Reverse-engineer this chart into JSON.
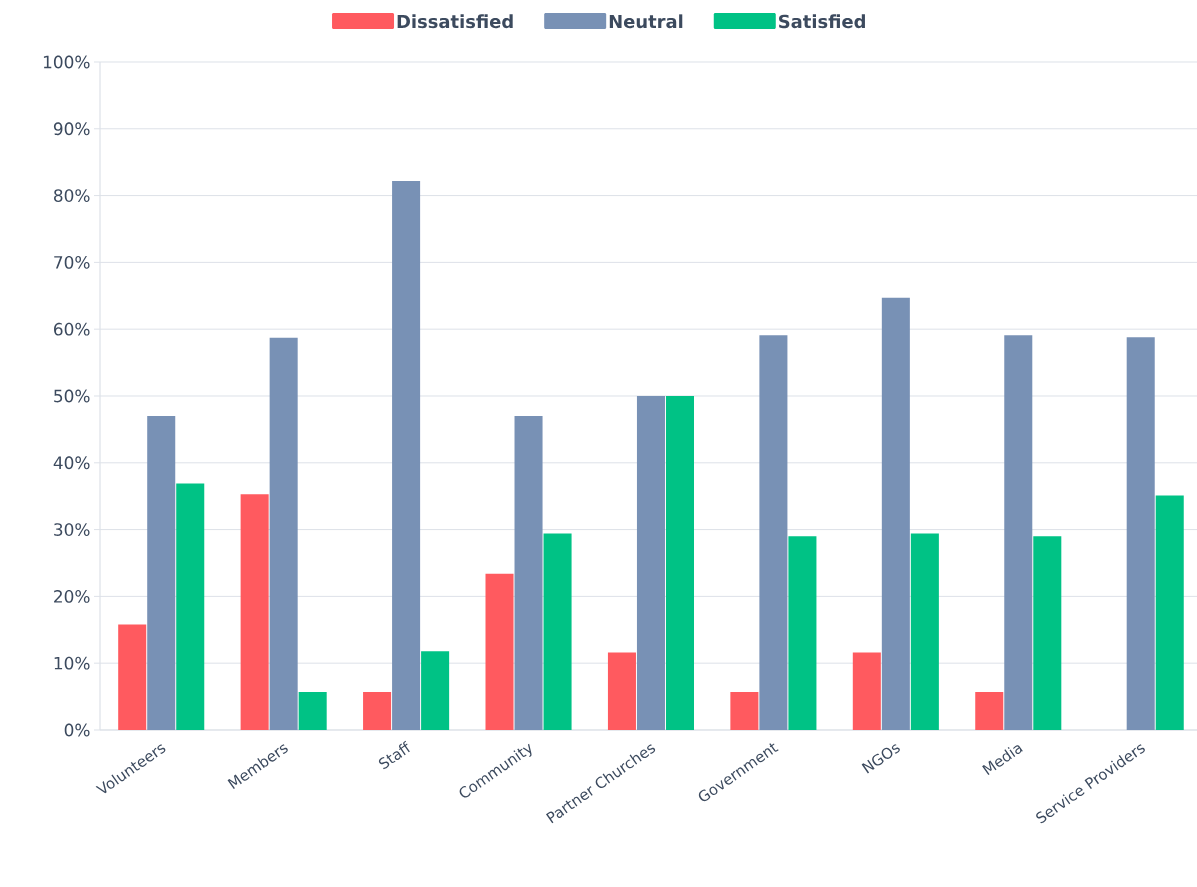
{
  "chart_data": {
    "type": "bar",
    "categories": [
      "Volunteers",
      "Members",
      "Staff",
      "Community",
      "Partner Churches",
      "Government",
      "NGOs",
      "Media",
      "Service Providers"
    ],
    "series": [
      {
        "name": "Dissatisfied",
        "color": "#ff5a5f",
        "values": [
          15.8,
          35.3,
          5.7,
          23.4,
          11.6,
          5.7,
          11.6,
          5.7,
          null
        ]
      },
      {
        "name": "Neutral",
        "color": "#7891b5",
        "values": [
          47.0,
          58.7,
          82.2,
          47.0,
          50.0,
          59.1,
          64.7,
          59.1,
          58.8
        ]
      },
      {
        "name": "Satisfied",
        "color": "#00c285",
        "values": [
          36.9,
          5.7,
          11.8,
          29.4,
          50.0,
          29.0,
          29.4,
          29.0,
          35.1
        ]
      }
    ],
    "ylim": [
      0,
      100
    ],
    "yticks": [
      {
        "value": 0,
        "label": "0%"
      },
      {
        "value": 10,
        "label": "10%"
      },
      {
        "value": 20,
        "label": "20%"
      },
      {
        "value": 30,
        "label": "30%"
      },
      {
        "value": 40,
        "label": "40%"
      },
      {
        "value": 50,
        "label": "50%"
      },
      {
        "value": 60,
        "label": "60%"
      },
      {
        "value": 70,
        "label": "70%"
      },
      {
        "value": 80,
        "label": "80%"
      },
      {
        "value": 90,
        "label": "90%"
      },
      {
        "value": 100,
        "label": "100%"
      }
    ],
    "grid": "y",
    "legend": "top"
  }
}
